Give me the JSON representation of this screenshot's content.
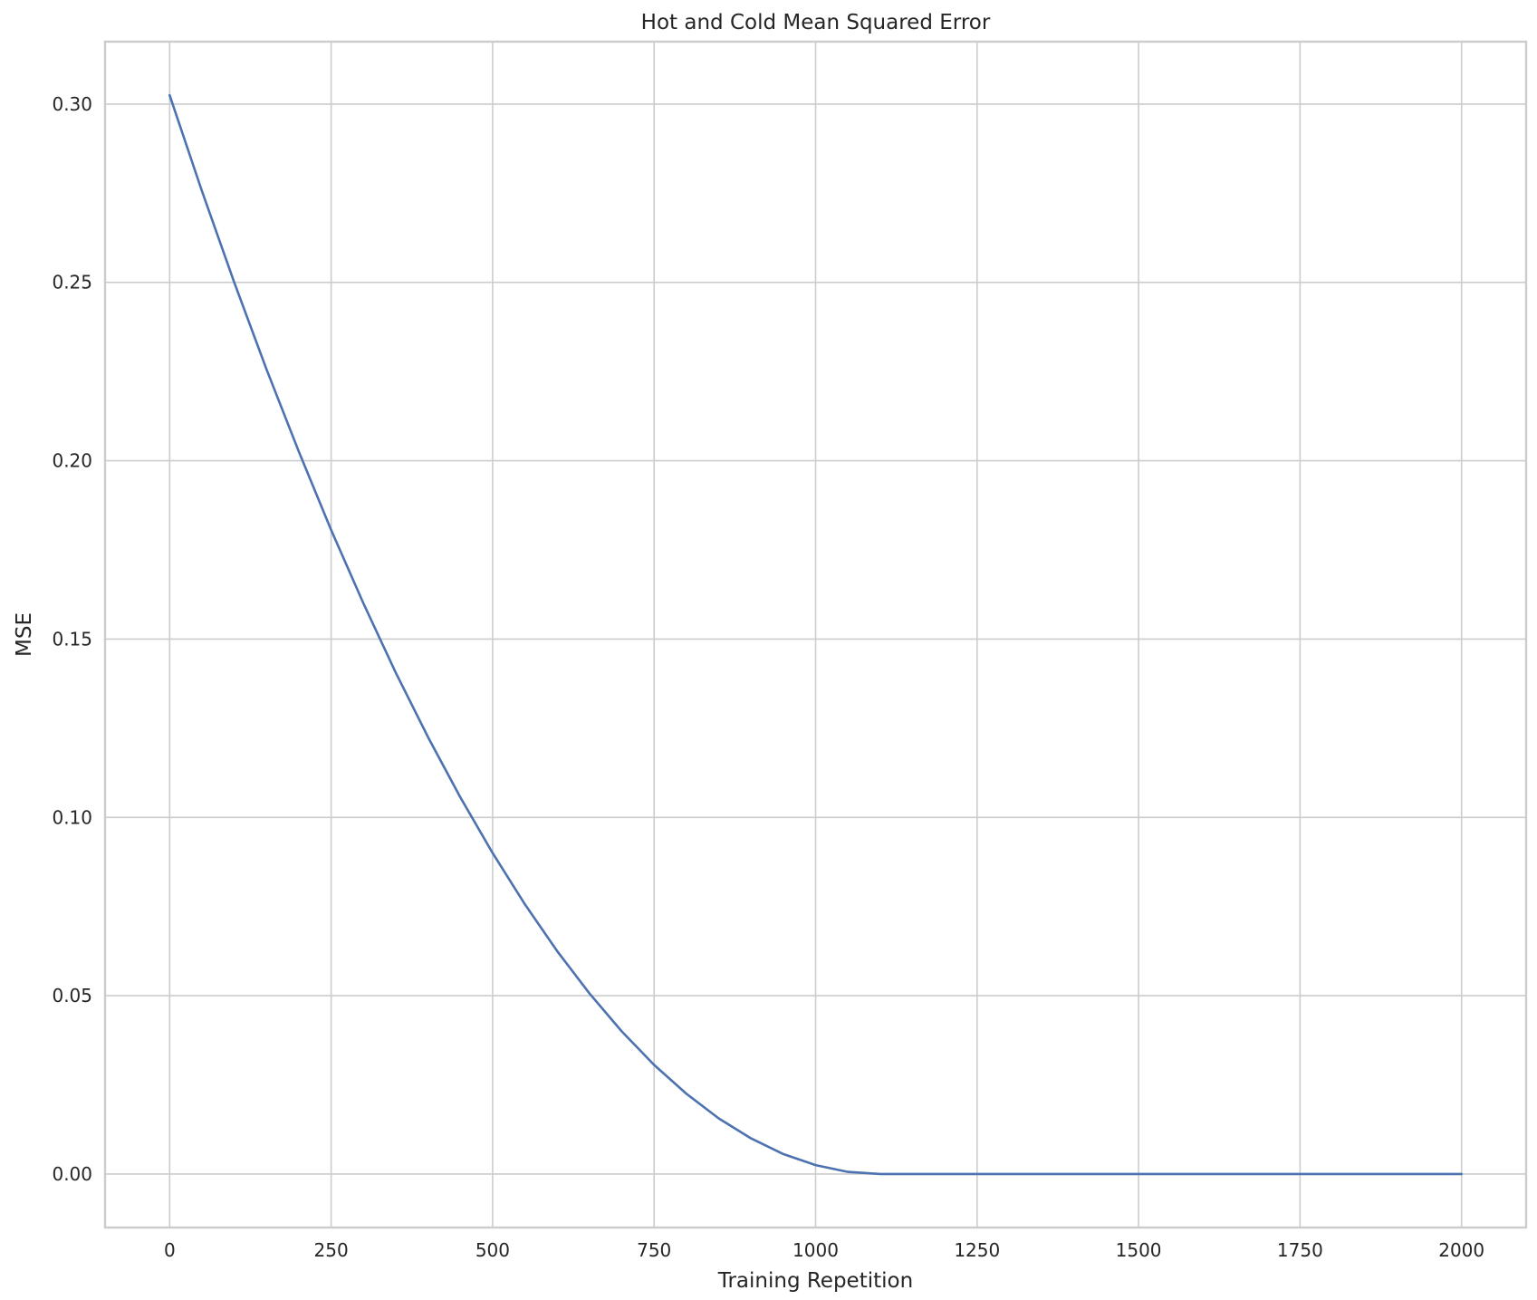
{
  "chart_data": {
    "type": "line",
    "title": "Hot and Cold Mean Squared Error",
    "xlabel": "Training Repetition",
    "ylabel": "MSE",
    "xlim": [
      -100,
      2100
    ],
    "ylim": [
      -0.015,
      0.3175
    ],
    "xticks": [
      0,
      250,
      500,
      750,
      1000,
      1250,
      1500,
      1750,
      2000
    ],
    "xtick_labels": [
      "0",
      "250",
      "500",
      "750",
      "1000",
      "1250",
      "1500",
      "1750",
      "2000"
    ],
    "yticks": [
      0.0,
      0.05,
      0.1,
      0.15,
      0.2,
      0.25,
      0.3
    ],
    "ytick_labels": [
      "0.00",
      "0.05",
      "0.10",
      "0.15",
      "0.20",
      "0.25",
      "0.30"
    ],
    "grid": true,
    "series": [
      {
        "color": "#4c72b0",
        "x": [
          0,
          50,
          100,
          150,
          200,
          250,
          300,
          350,
          400,
          450,
          500,
          550,
          600,
          650,
          700,
          750,
          800,
          850,
          900,
          950,
          1000,
          1050,
          1100,
          1150,
          1200,
          1250,
          1300,
          1400,
          1500,
          1600,
          1700,
          1800,
          1900,
          2000
        ],
        "y": [
          0.3025,
          0.2756,
          0.25,
          0.2256,
          0.2025,
          0.1806,
          0.16,
          0.1406,
          0.1225,
          0.1056,
          0.09,
          0.0756,
          0.0625,
          0.0506,
          0.04,
          0.0306,
          0.0225,
          0.0156,
          0.01,
          0.0056,
          0.0025,
          0.0006,
          0.0,
          0.0,
          0.0,
          0.0,
          0.0,
          0.0,
          0.0,
          0.0,
          0.0,
          0.0,
          0.0,
          0.0
        ]
      }
    ]
  }
}
